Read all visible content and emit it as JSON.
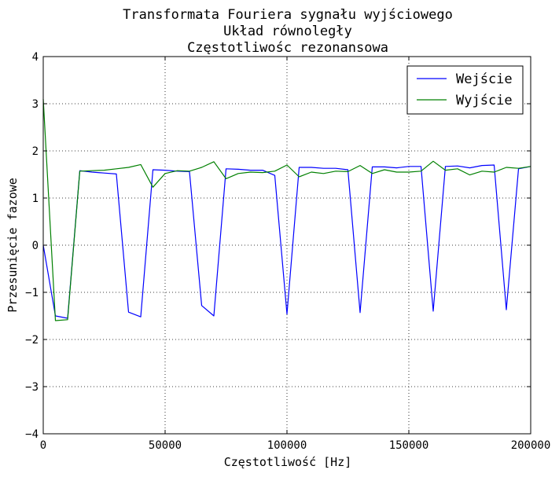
{
  "chart_data": {
    "type": "line",
    "title": [
      "Transformata Fouriera sygnału wyjściowego",
      "Układ równoległy",
      "Częstotliwośc rezonansowa"
    ],
    "xlabel": "Częstotliwość [Hz]",
    "ylabel": "Przesunięcie fazowe",
    "xlim": [
      0,
      200000
    ],
    "ylim": [
      -4,
      4
    ],
    "xticks": [
      0,
      50000,
      100000,
      150000,
      200000
    ],
    "xtick_labels": [
      "0",
      "50000",
      "100000",
      "150000",
      "200000"
    ],
    "yticks": [
      -4,
      -3,
      -2,
      -1,
      0,
      1,
      2,
      3,
      4
    ],
    "ytick_labels": [
      "−4",
      "−3",
      "−2",
      "−1",
      "0",
      "1",
      "2",
      "3",
      "4"
    ],
    "grid": true,
    "legend_position": "top-right",
    "series": [
      {
        "name": "Wejście",
        "color": "#0000ff",
        "x": [
          0,
          5000,
          10000,
          15000,
          20000,
          25000,
          30000,
          35000,
          40000,
          45000,
          50000,
          55000,
          60000,
          65000,
          70000,
          75000,
          80000,
          85000,
          90000,
          95000,
          100000,
          105000,
          110000,
          115000,
          120000,
          125000,
          130000,
          135000,
          140000,
          145000,
          150000,
          155000,
          160000,
          165000,
          170000,
          175000,
          180000,
          185000,
          190000,
          195000,
          200000
        ],
        "values": [
          0.0,
          -1.5,
          -1.55,
          1.58,
          1.55,
          1.53,
          1.51,
          -1.42,
          -1.52,
          1.6,
          1.59,
          1.57,
          1.56,
          -1.28,
          -1.5,
          1.62,
          1.61,
          1.59,
          1.59,
          1.48,
          -1.46,
          1.65,
          1.65,
          1.63,
          1.63,
          1.6,
          -1.43,
          1.66,
          1.66,
          1.64,
          1.67,
          1.67,
          -1.4,
          1.67,
          1.68,
          1.64,
          1.69,
          1.7,
          -1.37,
          1.62,
          1.67
        ]
      },
      {
        "name": "Wyjście",
        "color": "#008000",
        "x": [
          0,
          5000,
          10000,
          15000,
          20000,
          25000,
          30000,
          35000,
          40000,
          45000,
          50000,
          55000,
          60000,
          65000,
          70000,
          75000,
          80000,
          85000,
          90000,
          95000,
          100000,
          105000,
          110000,
          115000,
          120000,
          125000,
          130000,
          135000,
          140000,
          145000,
          150000,
          155000,
          160000,
          165000,
          170000,
          175000,
          180000,
          185000,
          190000,
          195000,
          200000
        ],
        "values": [
          3.1,
          -1.6,
          -1.58,
          1.57,
          1.58,
          1.59,
          1.62,
          1.65,
          1.71,
          1.23,
          1.52,
          1.58,
          1.57,
          1.65,
          1.77,
          1.41,
          1.52,
          1.55,
          1.54,
          1.57,
          1.7,
          1.45,
          1.55,
          1.52,
          1.57,
          1.56,
          1.69,
          1.52,
          1.6,
          1.55,
          1.55,
          1.57,
          1.78,
          1.59,
          1.62,
          1.49,
          1.57,
          1.55,
          1.65,
          1.63,
          1.67
        ]
      }
    ]
  }
}
